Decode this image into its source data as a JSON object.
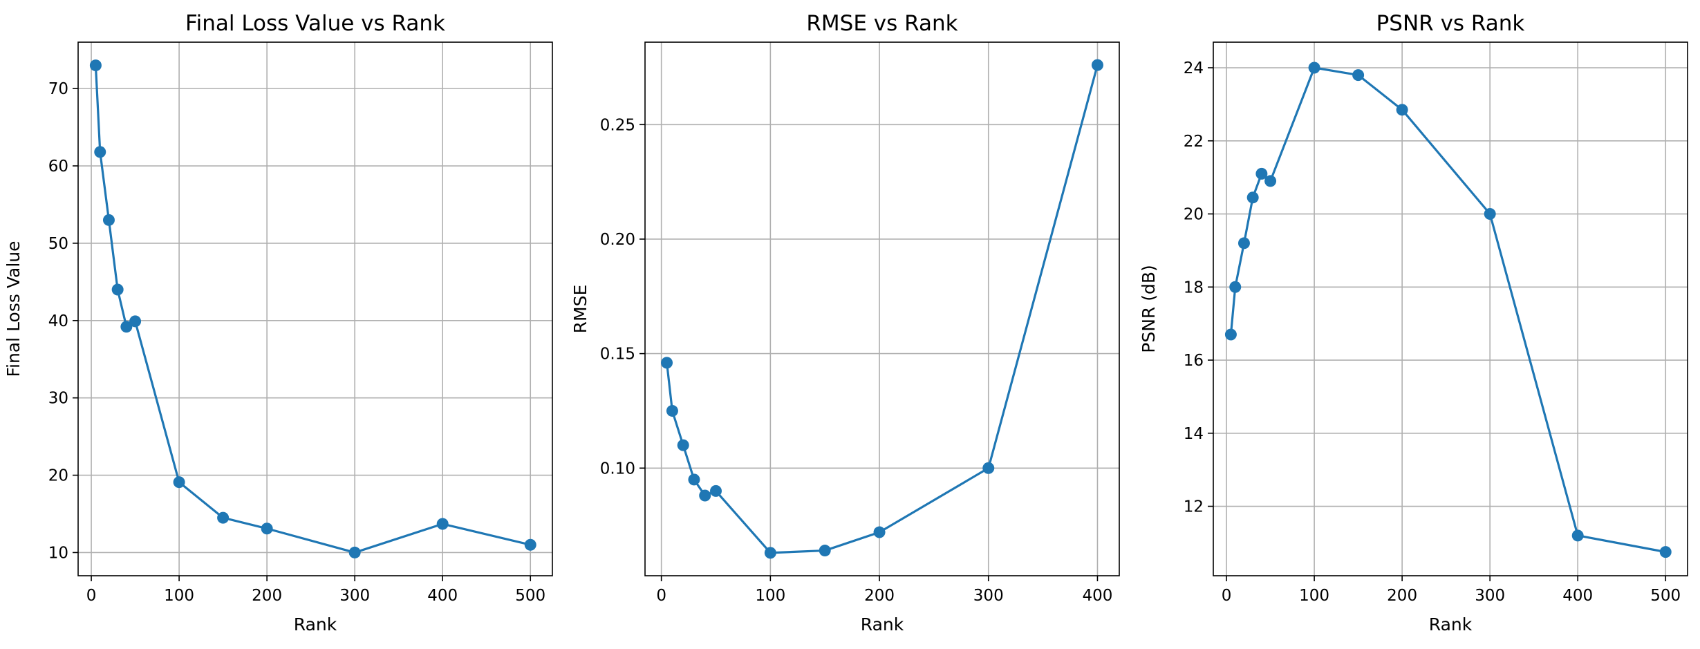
{
  "style": {
    "series_color": "#1f77b4"
  },
  "chart_data": [
    {
      "type": "line",
      "title": "Final Loss Value vs Rank",
      "xlabel": "Rank",
      "ylabel": "Final Loss Value",
      "grid": true,
      "xlim": [
        -15,
        525
      ],
      "ylim": [
        7,
        76
      ],
      "xticks": [
        0,
        100,
        200,
        300,
        400,
        500
      ],
      "yticks": [
        10,
        20,
        30,
        40,
        50,
        60,
        70
      ],
      "x": [
        5,
        10,
        20,
        30,
        40,
        50,
        100,
        150,
        200,
        300,
        400,
        500
      ],
      "series": [
        {
          "values": [
            73.0,
            61.8,
            53.0,
            44.0,
            39.2,
            39.9,
            19.1,
            14.5,
            13.1,
            10.0,
            13.7,
            11.0
          ]
        }
      ]
    },
    {
      "type": "line",
      "title": "RMSE vs Rank",
      "xlabel": "Rank",
      "ylabel": "RMSE",
      "grid": true,
      "xlim": [
        -15,
        420
      ],
      "ylim": [
        0.053,
        0.286
      ],
      "xticks": [
        0,
        100,
        200,
        300,
        400
      ],
      "yticks": [
        0.1,
        0.15,
        0.2,
        0.25
      ],
      "ytick_labels": [
        "0.10",
        "0.15",
        "0.20",
        "0.25"
      ],
      "x": [
        5,
        10,
        20,
        30,
        40,
        50,
        100,
        150,
        200,
        300,
        400
      ],
      "series": [
        {
          "values": [
            0.146,
            0.125,
            0.11,
            0.095,
            0.088,
            0.09,
            0.063,
            0.064,
            0.072,
            0.1,
            0.276
          ]
        }
      ]
    },
    {
      "type": "line",
      "title": "PSNR vs Rank",
      "xlabel": "Rank",
      "ylabel": "PSNR (dB)",
      "grid": true,
      "xlim": [
        -15,
        525
      ],
      "ylim": [
        10.1,
        24.7
      ],
      "xticks": [
        0,
        100,
        200,
        300,
        400,
        500
      ],
      "yticks": [
        12,
        14,
        16,
        18,
        20,
        22,
        24
      ],
      "x": [
        5,
        10,
        20,
        30,
        40,
        50,
        100,
        150,
        200,
        300,
        400,
        500
      ],
      "series": [
        {
          "values": [
            16.7,
            18.0,
            19.2,
            20.45,
            21.1,
            20.9,
            24.0,
            23.8,
            22.85,
            20.0,
            11.2,
            10.75
          ]
        }
      ]
    }
  ]
}
